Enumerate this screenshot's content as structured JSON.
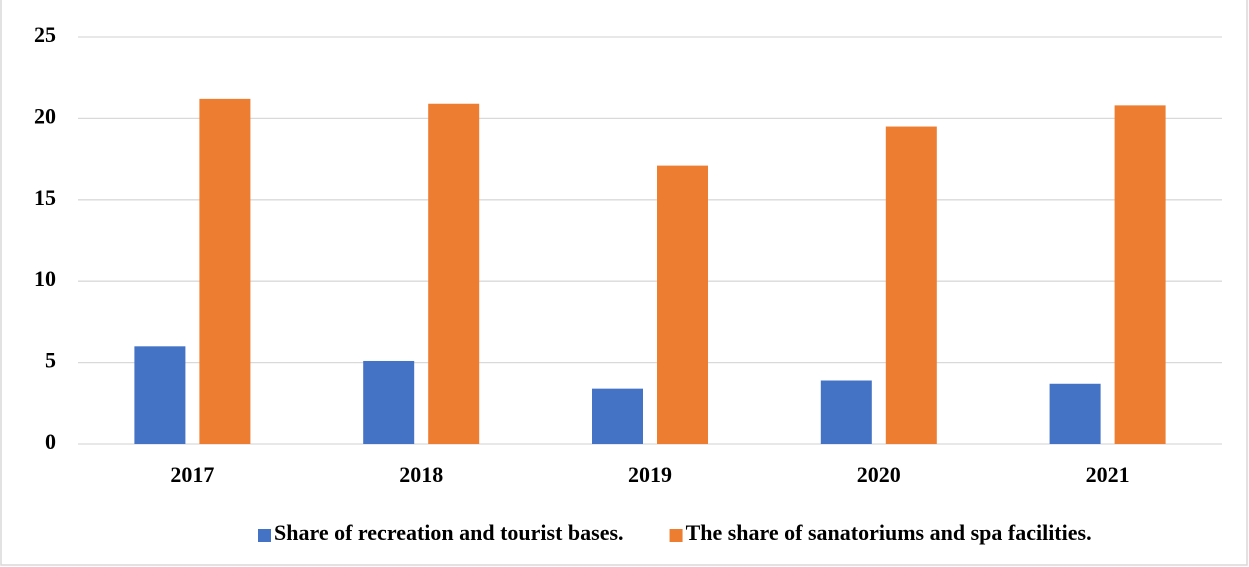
{
  "chart_data": {
    "type": "bar",
    "categories": [
      "2017",
      "2018",
      "2019",
      "2020",
      "2021"
    ],
    "series": [
      {
        "name": "Share of recreation and tourist bases.",
        "color": "#4472c4",
        "values": [
          6.0,
          5.1,
          3.4,
          3.9,
          3.7
        ]
      },
      {
        "name": "The share of sanatoriums and spa facilities.",
        "color": "#ed7d31",
        "values": [
          21.2,
          20.9,
          17.1,
          19.5,
          20.8
        ]
      }
    ],
    "ylim": [
      0,
      25
    ],
    "yticks": [
      0,
      5,
      10,
      15,
      20,
      25
    ],
    "grid": true,
    "legend": "bottom"
  }
}
